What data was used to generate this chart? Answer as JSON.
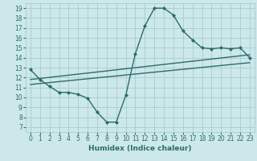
{
  "xlabel": "Humidex (Indice chaleur)",
  "bg_color": "#cce8ea",
  "line_color": "#2d6b6b",
  "grid_color": "#aacccc",
  "xlim": [
    -0.5,
    23.5
  ],
  "ylim": [
    6.5,
    19.5
  ],
  "xticks": [
    0,
    1,
    2,
    3,
    4,
    5,
    6,
    7,
    8,
    9,
    10,
    11,
    12,
    13,
    14,
    15,
    16,
    17,
    18,
    19,
    20,
    21,
    22,
    23
  ],
  "yticks": [
    7,
    8,
    9,
    10,
    11,
    12,
    13,
    14,
    15,
    16,
    17,
    18,
    19
  ],
  "line1_x": [
    0,
    1,
    2,
    3,
    4,
    5,
    6,
    7,
    8,
    9,
    10,
    11,
    12,
    13,
    14,
    15,
    16,
    17,
    18,
    19,
    20,
    21,
    22,
    23
  ],
  "line1_y": [
    12.8,
    11.8,
    11.1,
    10.5,
    10.5,
    10.3,
    9.9,
    8.5,
    7.5,
    7.5,
    10.2,
    14.4,
    17.2,
    19.0,
    19.0,
    18.3,
    16.7,
    15.8,
    15.0,
    14.9,
    15.0,
    14.9,
    15.0,
    14.0
  ],
  "line2_x": [
    0,
    23
  ],
  "line2_y": [
    11.8,
    14.3
  ],
  "line3_x": [
    0,
    23
  ],
  "line3_y": [
    11.3,
    13.5
  ],
  "tick_fontsize": 5.5,
  "xlabel_fontsize": 6.5
}
